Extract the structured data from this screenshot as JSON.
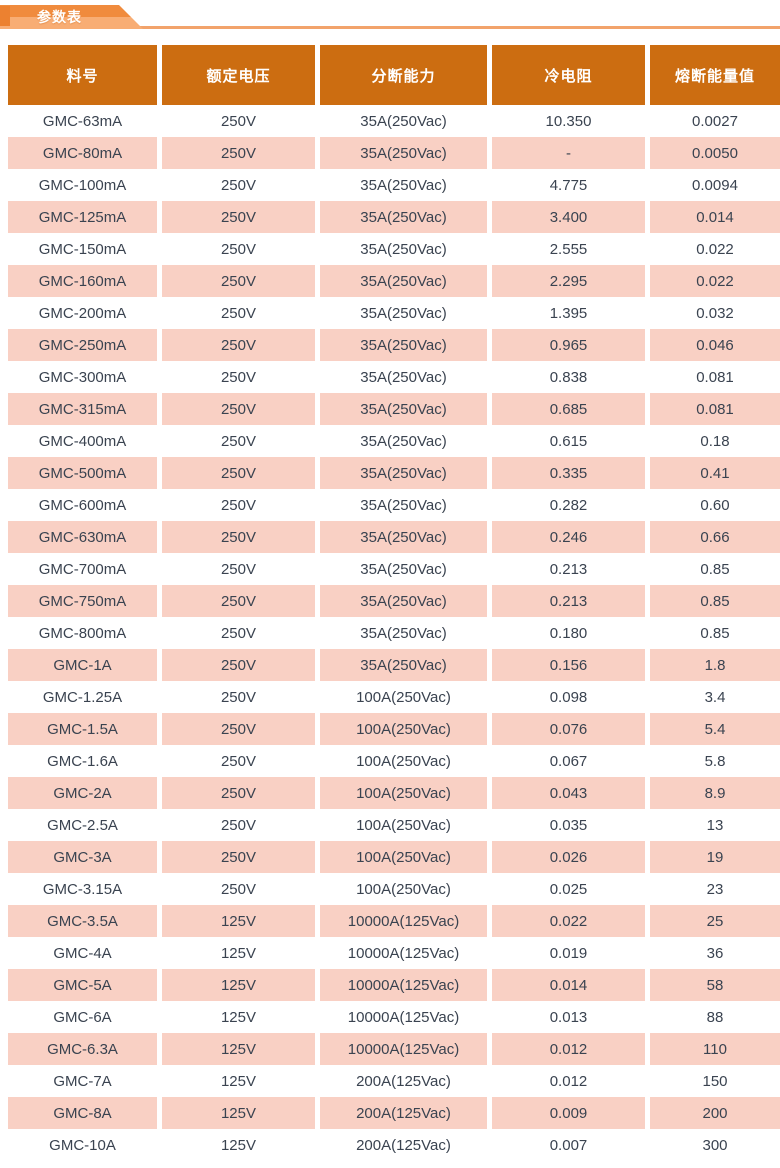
{
  "banner": {
    "tab_label": "参数表"
  },
  "table": {
    "columns": [
      "料号",
      "额定电压",
      "分断能力",
      "冷电阻",
      "熔断能量值"
    ],
    "column_keys": [
      "part_number",
      "rated_voltage",
      "breaking_capacity",
      "cold_resistance",
      "fusing_energy"
    ],
    "rows": [
      [
        "GMC-63mA",
        "250V",
        "35A(250Vac)",
        "10.350",
        "0.0027"
      ],
      [
        "GMC-80mA",
        "250V",
        "35A(250Vac)",
        "-",
        "0.0050"
      ],
      [
        "GMC-100mA",
        "250V",
        "35A(250Vac)",
        "4.775",
        "0.0094"
      ],
      [
        "GMC-125mA",
        "250V",
        "35A(250Vac)",
        "3.400",
        "0.014"
      ],
      [
        "GMC-150mA",
        "250V",
        "35A(250Vac)",
        "2.555",
        "0.022"
      ],
      [
        "GMC-160mA",
        "250V",
        "35A(250Vac)",
        "2.295",
        "0.022"
      ],
      [
        "GMC-200mA",
        "250V",
        "35A(250Vac)",
        "1.395",
        "0.032"
      ],
      [
        "GMC-250mA",
        "250V",
        "35A(250Vac)",
        "0.965",
        "0.046"
      ],
      [
        "GMC-300mA",
        "250V",
        "35A(250Vac)",
        "0.838",
        "0.081"
      ],
      [
        "GMC-315mA",
        "250V",
        "35A(250Vac)",
        "0.685",
        "0.081"
      ],
      [
        "GMC-400mA",
        "250V",
        "35A(250Vac)",
        "0.615",
        "0.18"
      ],
      [
        "GMC-500mA",
        "250V",
        "35A(250Vac)",
        "0.335",
        "0.41"
      ],
      [
        "GMC-600mA",
        "250V",
        "35A(250Vac)",
        "0.282",
        "0.60"
      ],
      [
        "GMC-630mA",
        "250V",
        "35A(250Vac)",
        "0.246",
        "0.66"
      ],
      [
        "GMC-700mA",
        "250V",
        "35A(250Vac)",
        "0.213",
        "0.85"
      ],
      [
        "GMC-750mA",
        "250V",
        "35A(250Vac)",
        "0.213",
        "0.85"
      ],
      [
        "GMC-800mA",
        "250V",
        "35A(250Vac)",
        "0.180",
        "0.85"
      ],
      [
        "GMC-1A",
        "250V",
        "35A(250Vac)",
        "0.156",
        "1.8"
      ],
      [
        "GMC-1.25A",
        "250V",
        "100A(250Vac)",
        "0.098",
        "3.4"
      ],
      [
        "GMC-1.5A",
        "250V",
        "100A(250Vac)",
        "0.076",
        "5.4"
      ],
      [
        "GMC-1.6A",
        "250V",
        "100A(250Vac)",
        "0.067",
        "5.8"
      ],
      [
        "GMC-2A",
        "250V",
        "100A(250Vac)",
        "0.043",
        "8.9"
      ],
      [
        "GMC-2.5A",
        "250V",
        "100A(250Vac)",
        "0.035",
        "13"
      ],
      [
        "GMC-3A",
        "250V",
        "100A(250Vac)",
        "0.026",
        "19"
      ],
      [
        "GMC-3.15A",
        "250V",
        "100A(250Vac)",
        "0.025",
        "23"
      ],
      [
        "GMC-3.5A",
        "125V",
        "10000A(125Vac)",
        "0.022",
        "25"
      ],
      [
        "GMC-4A",
        "125V",
        "10000A(125Vac)",
        "0.019",
        "36"
      ],
      [
        "GMC-5A",
        "125V",
        "10000A(125Vac)",
        "0.014",
        "58"
      ],
      [
        "GMC-6A",
        "125V",
        "10000A(125Vac)",
        "0.013",
        "88"
      ],
      [
        "GMC-6.3A",
        "125V",
        "10000A(125Vac)",
        "0.012",
        "110"
      ],
      [
        "GMC-7A",
        "125V",
        "200A(125Vac)",
        "0.012",
        "150"
      ],
      [
        "GMC-8A",
        "125V",
        "200A(125Vac)",
        "0.009",
        "200"
      ],
      [
        "GMC-10A",
        "125V",
        "200A(125Vac)",
        "0.007",
        "300"
      ]
    ]
  },
  "colors": {
    "header_bg": "#CC6D11",
    "row_alt_bg": "#F9D0C4",
    "row_text": "#3A4350",
    "tab_top": "#F08B3D",
    "tab_bottom": "#F8AD74",
    "tab_notch": "#EC8130",
    "underline": "#F2A36B"
  }
}
